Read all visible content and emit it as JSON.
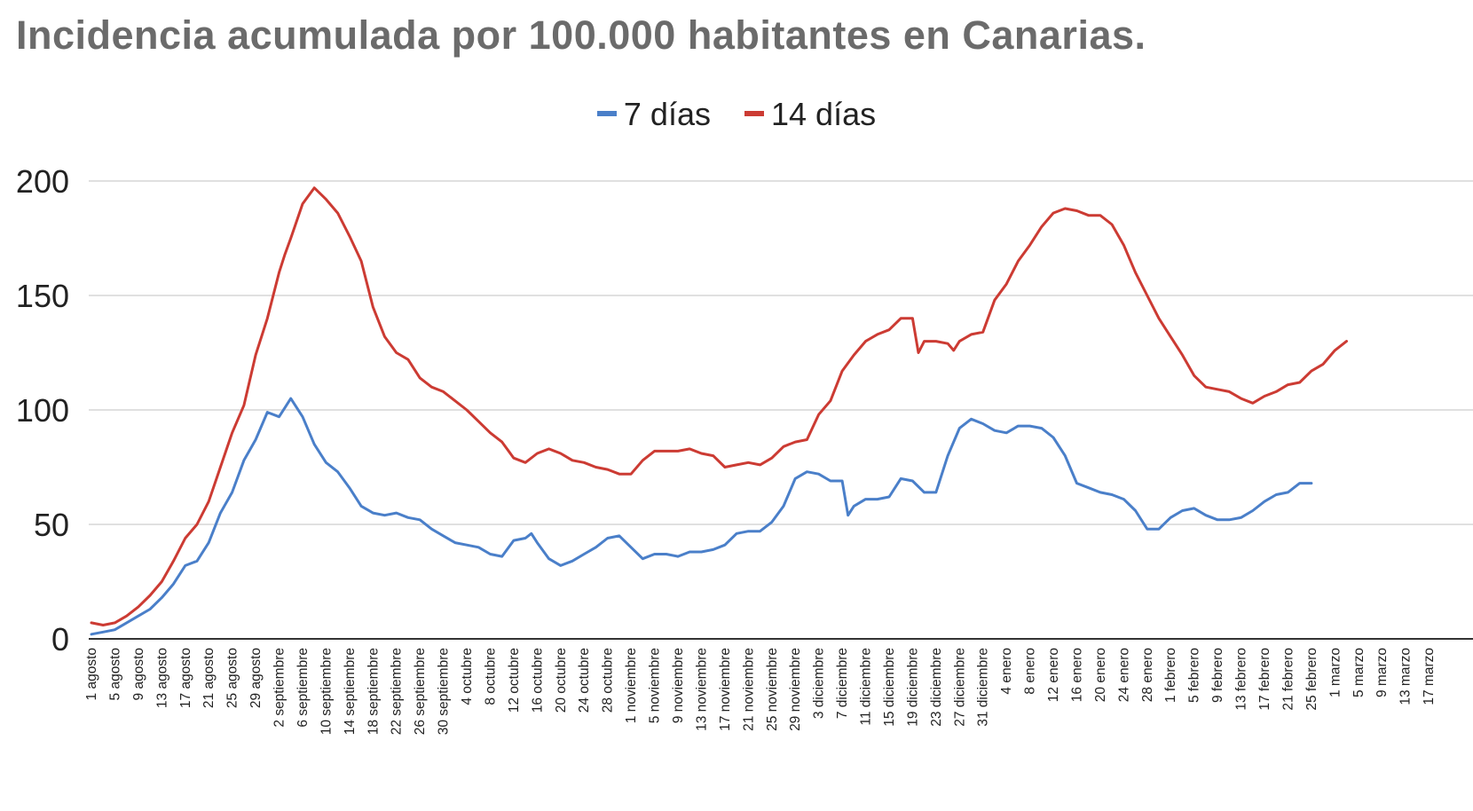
{
  "title": "Incidencia acumulada por 100.000 habitantes en Canarias.",
  "chart_data": {
    "type": "line",
    "title": "Incidencia acumulada por 100.000 habitantes en Canarias.",
    "xlabel": "",
    "ylabel": "",
    "ylim": [
      0,
      200
    ],
    "yticks": [
      0,
      50,
      100,
      150,
      200
    ],
    "grid": true,
    "legend_position": "top-center",
    "x_tick_labels": [
      "1 agosto",
      "5 agosto",
      "9 agosto",
      "13 agosto",
      "17 agosto",
      "21 agosto",
      "25 agosto",
      "29 agosto",
      "2 septiembre",
      "6 septiembre",
      "10 septiembre",
      "14 septiembre",
      "18 septiembre",
      "22 septiembre",
      "26 septiembre",
      "30 septiembre",
      "4 octubre",
      "8 octubre",
      "12 octubre",
      "16 octubre",
      "20 octubre",
      "24 octubre",
      "28 octubre",
      "1 noviembre",
      "5 noviembre",
      "9 noviembre",
      "13 noviembre",
      "17 noviembre",
      "21 noviembre",
      "25 noviembre",
      "29 noviembre",
      "3 diciembre",
      "7 diciembre",
      "11 diciembre",
      "15 diciembre",
      "19 diciembre",
      "23 diciembre",
      "27 diciembre",
      "31 diciembre",
      "4 enero",
      "8 enero",
      "12 enero",
      "16 enero",
      "20 enero",
      "24 enero",
      "28 enero",
      "1 febrero",
      "5 febrero",
      "9 febrero",
      "13 febrero",
      "17 febrero",
      "21 febrero",
      "25 febrero",
      "1 marzo",
      "5 marzo",
      "9 marzo",
      "13 marzo",
      "17 marzo"
    ],
    "series": [
      {
        "name": "7 días",
        "color": "#4a7fc9",
        "points": [
          [
            0,
            2
          ],
          [
            2,
            3
          ],
          [
            4,
            4
          ],
          [
            6,
            7
          ],
          [
            8,
            10
          ],
          [
            10,
            13
          ],
          [
            12,
            18
          ],
          [
            14,
            24
          ],
          [
            16,
            32
          ],
          [
            18,
            34
          ],
          [
            20,
            42
          ],
          [
            22,
            55
          ],
          [
            24,
            64
          ],
          [
            26,
            78
          ],
          [
            28,
            87
          ],
          [
            30,
            99
          ],
          [
            32,
            97
          ],
          [
            33,
            101
          ],
          [
            34,
            105
          ],
          [
            36,
            97
          ],
          [
            38,
            85
          ],
          [
            40,
            77
          ],
          [
            42,
            73
          ],
          [
            44,
            66
          ],
          [
            46,
            58
          ],
          [
            48,
            55
          ],
          [
            50,
            54
          ],
          [
            52,
            55
          ],
          [
            54,
            53
          ],
          [
            56,
            52
          ],
          [
            58,
            48
          ],
          [
            60,
            45
          ],
          [
            62,
            42
          ],
          [
            64,
            41
          ],
          [
            66,
            40
          ],
          [
            68,
            37
          ],
          [
            70,
            36
          ],
          [
            72,
            43
          ],
          [
            74,
            44
          ],
          [
            75,
            46
          ],
          [
            76,
            42
          ],
          [
            78,
            35
          ],
          [
            80,
            32
          ],
          [
            82,
            34
          ],
          [
            84,
            37
          ],
          [
            86,
            40
          ],
          [
            88,
            44
          ],
          [
            90,
            45
          ],
          [
            92,
            40
          ],
          [
            94,
            35
          ],
          [
            96,
            37
          ],
          [
            98,
            37
          ],
          [
            100,
            36
          ],
          [
            102,
            38
          ],
          [
            104,
            38
          ],
          [
            106,
            39
          ],
          [
            108,
            41
          ],
          [
            110,
            46
          ],
          [
            112,
            47
          ],
          [
            114,
            47
          ],
          [
            116,
            51
          ],
          [
            118,
            58
          ],
          [
            120,
            70
          ],
          [
            122,
            73
          ],
          [
            124,
            72
          ],
          [
            126,
            69
          ],
          [
            128,
            69
          ],
          [
            129,
            54
          ],
          [
            130,
            58
          ],
          [
            132,
            61
          ],
          [
            134,
            61
          ],
          [
            136,
            62
          ],
          [
            138,
            70
          ],
          [
            140,
            69
          ],
          [
            142,
            64
          ],
          [
            144,
            64
          ],
          [
            146,
            80
          ],
          [
            148,
            92
          ],
          [
            150,
            96
          ],
          [
            152,
            94
          ],
          [
            154,
            91
          ],
          [
            156,
            90
          ],
          [
            158,
            93
          ],
          [
            160,
            93
          ],
          [
            162,
            92
          ],
          [
            164,
            88
          ],
          [
            166,
            80
          ],
          [
            168,
            68
          ],
          [
            170,
            66
          ],
          [
            172,
            64
          ],
          [
            174,
            63
          ],
          [
            176,
            61
          ],
          [
            178,
            56
          ],
          [
            180,
            48
          ],
          [
            182,
            48
          ],
          [
            184,
            53
          ],
          [
            186,
            56
          ],
          [
            188,
            57
          ],
          [
            190,
            54
          ],
          [
            192,
            52
          ],
          [
            194,
            52
          ],
          [
            196,
            53
          ],
          [
            198,
            56
          ],
          [
            200,
            60
          ],
          [
            202,
            63
          ],
          [
            204,
            64
          ],
          [
            206,
            68
          ],
          [
            208,
            68
          ]
        ]
      },
      {
        "name": "14 días",
        "color": "#cc3b33",
        "points": [
          [
            0,
            7
          ],
          [
            2,
            6
          ],
          [
            4,
            7
          ],
          [
            6,
            10
          ],
          [
            8,
            14
          ],
          [
            10,
            19
          ],
          [
            12,
            25
          ],
          [
            14,
            34
          ],
          [
            16,
            44
          ],
          [
            18,
            50
          ],
          [
            20,
            60
          ],
          [
            22,
            75
          ],
          [
            24,
            90
          ],
          [
            26,
            102
          ],
          [
            28,
            124
          ],
          [
            30,
            140
          ],
          [
            32,
            160
          ],
          [
            33,
            168
          ],
          [
            34,
            175
          ],
          [
            36,
            190
          ],
          [
            38,
            197
          ],
          [
            40,
            192
          ],
          [
            42,
            186
          ],
          [
            44,
            176
          ],
          [
            46,
            165
          ],
          [
            48,
            145
          ],
          [
            50,
            132
          ],
          [
            52,
            125
          ],
          [
            54,
            122
          ],
          [
            56,
            114
          ],
          [
            58,
            110
          ],
          [
            60,
            108
          ],
          [
            62,
            104
          ],
          [
            64,
            100
          ],
          [
            66,
            95
          ],
          [
            68,
            90
          ],
          [
            70,
            86
          ],
          [
            72,
            79
          ],
          [
            74,
            77
          ],
          [
            76,
            81
          ],
          [
            78,
            83
          ],
          [
            80,
            81
          ],
          [
            82,
            78
          ],
          [
            84,
            77
          ],
          [
            86,
            75
          ],
          [
            88,
            74
          ],
          [
            90,
            72
          ],
          [
            92,
            72
          ],
          [
            94,
            78
          ],
          [
            96,
            82
          ],
          [
            98,
            82
          ],
          [
            100,
            82
          ],
          [
            102,
            83
          ],
          [
            104,
            81
          ],
          [
            106,
            80
          ],
          [
            108,
            75
          ],
          [
            110,
            76
          ],
          [
            112,
            77
          ],
          [
            114,
            76
          ],
          [
            116,
            79
          ],
          [
            118,
            84
          ],
          [
            120,
            86
          ],
          [
            122,
            87
          ],
          [
            124,
            98
          ],
          [
            126,
            104
          ],
          [
            128,
            117
          ],
          [
            130,
            124
          ],
          [
            132,
            130
          ],
          [
            134,
            133
          ],
          [
            136,
            135
          ],
          [
            138,
            140
          ],
          [
            140,
            140
          ],
          [
            141,
            125
          ],
          [
            142,
            130
          ],
          [
            144,
            130
          ],
          [
            146,
            129
          ],
          [
            147,
            126
          ],
          [
            148,
            130
          ],
          [
            150,
            133
          ],
          [
            152,
            134
          ],
          [
            154,
            148
          ],
          [
            156,
            155
          ],
          [
            158,
            165
          ],
          [
            160,
            172
          ],
          [
            162,
            180
          ],
          [
            164,
            186
          ],
          [
            166,
            188
          ],
          [
            168,
            187
          ],
          [
            170,
            185
          ],
          [
            172,
            185
          ],
          [
            174,
            181
          ],
          [
            176,
            172
          ],
          [
            178,
            160
          ],
          [
            180,
            150
          ],
          [
            182,
            140
          ],
          [
            184,
            132
          ],
          [
            186,
            124
          ],
          [
            188,
            115
          ],
          [
            190,
            110
          ],
          [
            192,
            109
          ],
          [
            194,
            108
          ],
          [
            196,
            105
          ],
          [
            198,
            103
          ],
          [
            200,
            106
          ],
          [
            202,
            108
          ],
          [
            204,
            111
          ],
          [
            206,
            112
          ],
          [
            208,
            117
          ],
          [
            210,
            120
          ],
          [
            212,
            126
          ],
          [
            214,
            130
          ]
        ]
      }
    ]
  }
}
